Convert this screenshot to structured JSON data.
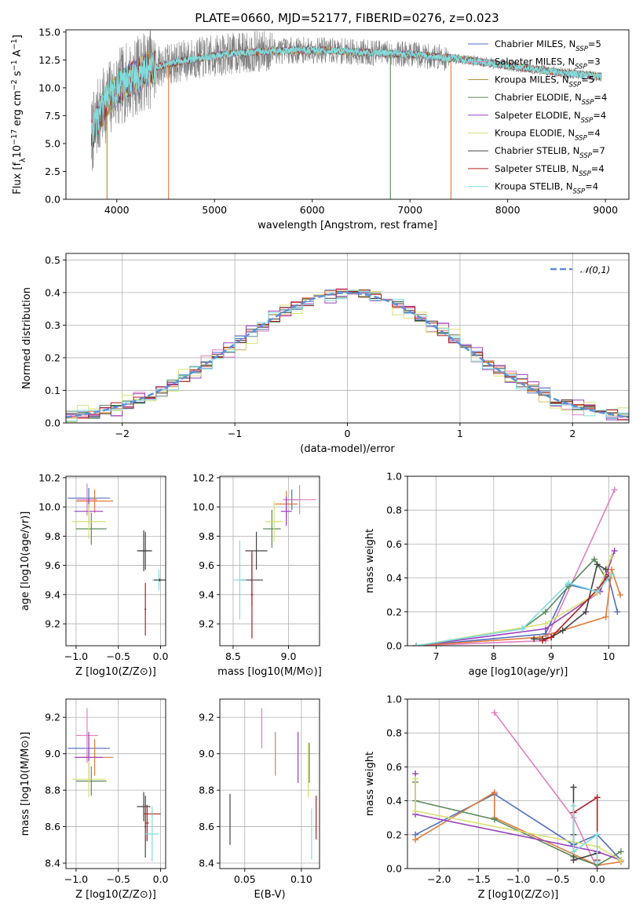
{
  "figure": {
    "title": "PLATE=0660, MJD=52177, FIBERID=0276, z=0.023"
  },
  "chart_data": [
    {
      "type": "line",
      "id": "spectrum",
      "title": "PLATE=0660, MJD=52177, FIBERID=0276, z=0.023",
      "xlabel": "wavelength [Angstrom, rest frame]",
      "ylabel": "Flux [f_λ 10^-17 erg cm^-2 s^-1 A^-1]",
      "xlim": [
        3480,
        9240
      ],
      "ylim": [
        0,
        15.2
      ],
      "xticks": [
        4000,
        5000,
        6000,
        7000,
        8000,
        9000
      ],
      "yticks": [
        0.0,
        2.5,
        5.0,
        7.5,
        10.0,
        12.5,
        15.0
      ],
      "data_range": [
        3740,
        8960
      ],
      "legend_loc": "upper right",
      "continuum": {
        "x": [
          3740,
          3800,
          3900,
          4000,
          4100,
          4300,
          4500,
          4800,
          5200,
          5600,
          6000,
          6500,
          7000,
          7500,
          8000,
          8500,
          8960
        ],
        "y": [
          5.5,
          7.2,
          8.8,
          9.8,
          10.5,
          11.6,
          12.1,
          12.6,
          13.1,
          13.3,
          13.4,
          13.2,
          13.0,
          12.6,
          12.0,
          11.4,
          11.0
        ]
      },
      "series": [
        {
          "name": "Chabrier MILES, N_SSP=5",
          "color": "#4f6fbf"
        },
        {
          "name": "Salpeter MILES, N_SSP=3",
          "color": "#e07ec0"
        },
        {
          "name": "Kroupa MILES, N_SSP=5",
          "color": "#b08a2a"
        },
        {
          "name": "Chabrier ELODIE, N_SSP=4",
          "color": "#5a8a5a"
        },
        {
          "name": "Salpeter ELODIE, N_SSP=4",
          "color": "#9b3fbf"
        },
        {
          "name": "Kroupa ELODIE, N_SSP=4",
          "color": "#d8e070"
        },
        {
          "name": "Chabrier STELIB, N_SSP=7",
          "color": "#444444"
        },
        {
          "name": "Salpeter STELIB, N_SSP=4",
          "color": "#b02020"
        },
        {
          "name": "Kroupa STELIB, N_SSP=4",
          "color": "#80dede"
        }
      ],
      "data_color": "#7f7f7f",
      "dropouts": [
        {
          "x": 3900,
          "color": "#b08a2a"
        },
        {
          "x": 4530,
          "color": "#e07b3c"
        },
        {
          "x": 6800,
          "color": "#5a8a5a"
        },
        {
          "x": 7420,
          "color": "#e07b3c"
        }
      ]
    },
    {
      "type": "histogram",
      "id": "residuals",
      "xlabel": "(data-model)/error",
      "ylabel": "Normed distribution",
      "xlim": [
        -2.5,
        2.5
      ],
      "ylim": [
        0,
        0.52
      ],
      "xticks": [
        -2,
        -1,
        0,
        1,
        2
      ],
      "yticks": [
        0.0,
        0.1,
        0.2,
        0.3,
        0.4,
        0.5
      ],
      "grid": true,
      "bin_width": 0.1,
      "legend_loc": "upper right",
      "reference": {
        "name": "𝒩(0,1)",
        "color": "#5b8fd8",
        "mean": 0,
        "sigma": 1
      },
      "series_colors": [
        "#4f6fbf",
        "#e07ec0",
        "#e07b3c",
        "#5a8a5a",
        "#9b3fbf",
        "#d8e070",
        "#444444",
        "#b02020",
        "#80dede"
      ],
      "noise_amplitude": [
        0.015,
        0.028,
        0.012,
        0.018,
        0.026,
        0.032,
        0.012,
        0.014,
        0.02
      ]
    },
    {
      "type": "errorbar",
      "id": "age-vs-Z",
      "xlabel": "Z [log10(Z/Z⊙)]",
      "ylabel": "age [log10(age/yr)]",
      "xlim": [
        -1.12,
        0.06
      ],
      "ylim": [
        9.05,
        10.21
      ],
      "xticks": [
        -1.0,
        -0.5,
        0.0
      ],
      "yticks": [
        9.2,
        9.4,
        9.6,
        9.8,
        10.0,
        10.2
      ],
      "grid": true,
      "points": [
        {
          "x": -0.85,
          "xerr": 0.25,
          "y": 10.06,
          "yerr": 0.07,
          "color": "#4f6fbf"
        },
        {
          "x": -0.87,
          "xerr": 0.12,
          "y": 10.05,
          "yerr": 0.11,
          "color": "#e07ec0"
        },
        {
          "x": -0.78,
          "xerr": 0.22,
          "y": 10.04,
          "yerr": 0.08,
          "color": "#e07b3c"
        },
        {
          "x": -0.82,
          "xerr": 0.18,
          "y": 9.85,
          "yerr": 0.11,
          "color": "#5a8a5a"
        },
        {
          "x": -0.85,
          "xerr": 0.17,
          "y": 9.97,
          "yerr": 0.09,
          "color": "#9b3fbf"
        },
        {
          "x": -0.85,
          "xerr": 0.2,
          "y": 9.9,
          "yerr": 0.12,
          "color": "#d8e070"
        },
        {
          "x": -0.18,
          "xerr": 0.08,
          "y": 9.7,
          "yerr": 0.13,
          "color": "#444444"
        },
        {
          "x": -0.2,
          "xerr": 0.08,
          "y": 9.7,
          "yerr": 0.14,
          "color": "#444444"
        },
        {
          "x": -0.18,
          "xerr": 0.01,
          "y": 9.3,
          "yerr": 0.18,
          "color": "#b02020"
        },
        {
          "x": -0.02,
          "xerr": 0.08,
          "y": 9.5,
          "yerr": 0.07,
          "color": "#80dede"
        },
        {
          "x": -0.01,
          "xerr": 0.07,
          "y": 9.5,
          "yerr": 0.01,
          "color": "#444444"
        }
      ]
    },
    {
      "type": "errorbar",
      "id": "age-vs-mass",
      "xlabel": "mass [log10(M/M⊙)]",
      "ylabel": "",
      "xlim": [
        8.38,
        9.28
      ],
      "ylim": [
        9.05,
        10.21
      ],
      "xticks": [
        8.5,
        9.0
      ],
      "yticks": [
        9.2,
        9.4,
        9.6,
        9.8,
        10.0,
        10.2
      ],
      "grid": true,
      "points": [
        {
          "x": 9.03,
          "xerr": 0.08,
          "y": 10.05,
          "yerr": 0.07,
          "color": "#4f6fbf"
        },
        {
          "x": 9.1,
          "xerr": 0.15,
          "y": 10.05,
          "yerr": 0.1,
          "color": "#e07ec0"
        },
        {
          "x": 8.98,
          "xerr": 0.1,
          "y": 10.02,
          "yerr": 0.09,
          "color": "#e07b3c"
        },
        {
          "x": 8.85,
          "xerr": 0.08,
          "y": 9.85,
          "yerr": 0.13,
          "color": "#5a8a5a"
        },
        {
          "x": 8.98,
          "xerr": 0.05,
          "y": 9.97,
          "yerr": 0.1,
          "color": "#9b3fbf"
        },
        {
          "x": 8.87,
          "xerr": 0.08,
          "y": 9.9,
          "yerr": 0.14,
          "color": "#d8e070"
        },
        {
          "x": 8.71,
          "xerr": 0.1,
          "y": 9.7,
          "yerr": 0.13,
          "color": "#444444"
        },
        {
          "x": 8.67,
          "xerr": 0.1,
          "y": 9.5,
          "yerr": 0.18,
          "color": "#444444"
        },
        {
          "x": 8.67,
          "xerr": 0.01,
          "y": 9.4,
          "yerr": 0.3,
          "color": "#b02020"
        },
        {
          "x": 8.56,
          "xerr": 0.06,
          "y": 9.5,
          "yerr": 0.27,
          "color": "#80dede"
        }
      ]
    },
    {
      "type": "line",
      "id": "weight-vs-age",
      "xlabel": "age [log10(age/yr)]",
      "ylabel": "mass weight",
      "xlim": [
        6.5,
        10.35
      ],
      "ylim": [
        0,
        1.0
      ],
      "xticks": [
        7,
        8,
        9,
        10
      ],
      "yticks": [
        0.0,
        0.2,
        0.4,
        0.6,
        0.8,
        1.0
      ],
      "grid": true,
      "series": [
        {
          "color": "#4f6fbf",
          "x": [
            6.65,
            8.9,
            9.3,
            9.8,
            10.0,
            10.15
          ],
          "y": [
            0.0,
            0.07,
            0.36,
            0.32,
            0.4,
            0.2
          ]
        },
        {
          "color": "#e07ec0",
          "x": [
            6.65,
            8.9,
            10.1
          ],
          "y": [
            0.0,
            0.03,
            0.92
          ]
        },
        {
          "color": "#e07b3c",
          "x": [
            6.65,
            8.8,
            9.95,
            10.05,
            10.2
          ],
          "y": [
            0.0,
            0.05,
            0.17,
            0.45,
            0.3
          ]
        },
        {
          "color": "#5a8a5a",
          "x": [
            6.65,
            8.5,
            8.9,
            9.3,
            9.75,
            9.95
          ],
          "y": [
            0.0,
            0.1,
            0.2,
            0.35,
            0.51,
            0.4
          ]
        },
        {
          "color": "#9b3fbf",
          "x": [
            6.65,
            8.9,
            9.85,
            10.1
          ],
          "y": [
            0.0,
            0.1,
            0.32,
            0.56
          ]
        },
        {
          "color": "#d8e070",
          "x": [
            6.65,
            8.9,
            9.8,
            10.05
          ],
          "y": [
            0.0,
            0.13,
            0.31,
            0.53
          ]
        },
        {
          "color": "#444444",
          "x": [
            8.7,
            8.85,
            9.0,
            9.2,
            9.6,
            9.8,
            9.95
          ],
          "y": [
            0.04,
            0.04,
            0.05,
            0.09,
            0.2,
            0.48,
            0.45
          ]
        },
        {
          "color": "#b02020",
          "x": [
            8.85,
            9.0,
            9.8,
            10.0
          ],
          "y": [
            0.03,
            0.05,
            0.33,
            0.42
          ]
        },
        {
          "color": "#80dede",
          "x": [
            6.65,
            8.5,
            9.3,
            9.8,
            10.05
          ],
          "y": [
            0.0,
            0.1,
            0.37,
            0.32,
            0.42
          ]
        }
      ]
    },
    {
      "type": "errorbar",
      "id": "mass-vs-Z",
      "xlabel": "Z [log10(Z/Z⊙)]",
      "ylabel": "mass [log10(M/M⊙)]",
      "xlim": [
        -1.12,
        0.06
      ],
      "ylim": [
        8.37,
        9.3
      ],
      "xticks": [
        -1.0,
        -0.5,
        0.0
      ],
      "yticks": [
        8.4,
        8.6,
        8.8,
        9.0,
        9.2
      ],
      "grid": true,
      "points": [
        {
          "x": -0.85,
          "xerr": 0.25,
          "y": 9.03,
          "yerr": 0.06,
          "color": "#4f6fbf"
        },
        {
          "x": -0.87,
          "xerr": 0.13,
          "y": 9.1,
          "yerr": 0.15,
          "color": "#e07ec0"
        },
        {
          "x": -0.78,
          "xerr": 0.22,
          "y": 8.98,
          "yerr": 0.1,
          "color": "#e07b3c"
        },
        {
          "x": -0.82,
          "xerr": 0.18,
          "y": 8.85,
          "yerr": 0.08,
          "color": "#5a8a5a"
        },
        {
          "x": -0.85,
          "xerr": 0.17,
          "y": 8.98,
          "yerr": 0.14,
          "color": "#9b3fbf"
        },
        {
          "x": -0.85,
          "xerr": 0.2,
          "y": 8.86,
          "yerr": 0.1,
          "color": "#d8e070"
        },
        {
          "x": -0.2,
          "xerr": 0.08,
          "y": 8.71,
          "yerr": 0.08,
          "color": "#444444"
        },
        {
          "x": -0.18,
          "xerr": 0.01,
          "y": 8.6,
          "yerr": 0.17,
          "color": "#444444"
        },
        {
          "x": -0.1,
          "xerr": 0.1,
          "y": 8.67,
          "yerr": 0.01,
          "color": "#b02020"
        },
        {
          "x": -0.16,
          "xerr": 0.02,
          "y": 8.62,
          "yerr": 0.1,
          "color": "#b02020"
        },
        {
          "x": -0.1,
          "xerr": 0.08,
          "y": 8.56,
          "yerr": 0.15,
          "color": "#80dede"
        }
      ]
    },
    {
      "type": "errorbar",
      "id": "mass-vs-ebv",
      "xlabel": "E(B-V)",
      "ylabel": "",
      "xlim": [
        0.028,
        0.116
      ],
      "ylim": [
        8.37,
        9.3
      ],
      "xticks": [
        0.05,
        0.1
      ],
      "yticks": [
        8.4,
        8.6,
        8.8,
        9.0,
        9.2
      ],
      "grid": true,
      "points": [
        {
          "x": 0.065,
          "xerr": 0,
          "y": 9.14,
          "yerr": 0.11,
          "color": "#e07ec0"
        },
        {
          "x": 0.077,
          "xerr": 0,
          "y": 9.0,
          "yerr": 0.12,
          "color": "#e07b3c"
        },
        {
          "x": 0.097,
          "xerr": 0,
          "y": 8.98,
          "yerr": 0.14,
          "color": "#9b3fbf"
        },
        {
          "x": 0.106,
          "xerr": 0,
          "y": 8.91,
          "yerr": 0.15,
          "color": "#d8e070"
        },
        {
          "x": 0.107,
          "xerr": 0,
          "y": 8.95,
          "yerr": 0.11,
          "color": "#5a8a5a"
        },
        {
          "x": 0.037,
          "xerr": 0,
          "y": 8.64,
          "yerr": 0.14,
          "color": "#444444"
        },
        {
          "x": 0.113,
          "xerr": 0,
          "y": 8.65,
          "yerr": 0.12,
          "color": "#b02020"
        },
        {
          "x": 0.109,
          "xerr": 0,
          "y": 8.56,
          "yerr": 0.14,
          "color": "#80dede"
        }
      ]
    },
    {
      "type": "line",
      "id": "weight-vs-Z",
      "xlabel": "Z [log10(Z/Z⊙)]",
      "ylabel": "mass weight",
      "xlim": [
        -2.4,
        0.4
      ],
      "ylim": [
        0,
        1.0
      ],
      "xticks": [
        -2.0,
        -1.5,
        -1.0,
        -0.5,
        0.0
      ],
      "yticks": [
        0.0,
        0.2,
        0.4,
        0.6,
        0.8,
        1.0
      ],
      "grid": true,
      "series": [
        {
          "color": "#4f6fbf",
          "x": [
            -2.3,
            -1.3,
            -0.3,
            0.0,
            0.3
          ],
          "y": [
            0.2,
            0.44,
            0.14,
            0.2,
            0.05
          ]
        },
        {
          "color": "#e07ec0",
          "x": [
            -1.3,
            -0.3,
            0.0
          ],
          "y": [
            0.92,
            0.3,
            0.0
          ]
        },
        {
          "color": "#e07b3c",
          "x": [
            -2.3,
            -1.3,
            -1.3,
            0.0,
            0.3
          ],
          "y": [
            0.17,
            0.45,
            0.3,
            0.02,
            0.04
          ]
        },
        {
          "color": "#5a8a5a",
          "x": [
            -2.3,
            -2.3,
            -1.3,
            -0.3,
            0.0,
            0.3
          ],
          "y": [
            0.51,
            0.4,
            0.29,
            0.07,
            0.02,
            0.1
          ]
        },
        {
          "color": "#9b3fbf",
          "x": [
            -2.3,
            -2.3,
            0.0,
            0.3
          ],
          "y": [
            0.56,
            0.32,
            0.1,
            0.05
          ]
        },
        {
          "color": "#d8e070",
          "x": [
            -2.3,
            -2.3,
            0.0,
            0.3
          ],
          "y": [
            0.53,
            0.34,
            0.13,
            0.05
          ]
        },
        {
          "color": "#444444",
          "x": [
            -0.3,
            -0.3,
            -0.3,
            0.0,
            0.0
          ],
          "y": [
            0.48,
            0.2,
            0.05,
            0.09,
            0.04
          ]
        },
        {
          "color": "#b02020",
          "x": [
            -0.3,
            0.0,
            0.0
          ],
          "y": [
            0.33,
            0.42,
            0.05
          ]
        },
        {
          "color": "#80dede",
          "x": [
            -0.3,
            -0.3,
            0.0,
            0.0
          ],
          "y": [
            0.37,
            0.1,
            0.2,
            0.04
          ]
        }
      ]
    }
  ]
}
